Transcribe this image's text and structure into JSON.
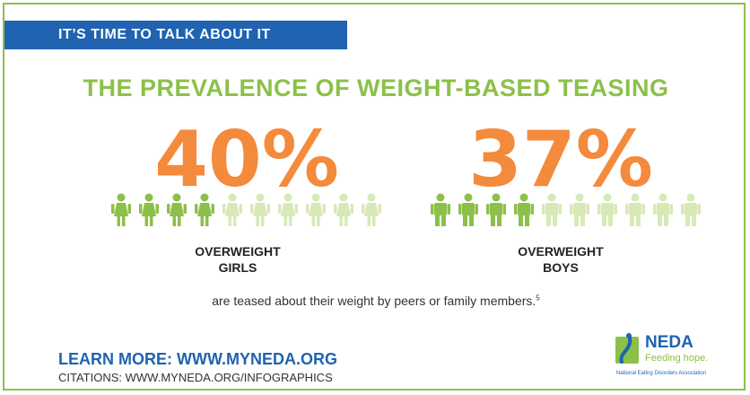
{
  "banner": {
    "text": "IT’S TIME TO TALK ABOUT IT"
  },
  "headline": "THE PREVALENCE OF WEIGHT-BASED TEASING",
  "girls": {
    "percent": "40%",
    "label_line1": "OVERWEIGHT",
    "label_line2": "GIRLS",
    "total_figures": 10,
    "highlighted": 4
  },
  "boys": {
    "percent": "37%",
    "label_line1": "OVERWEIGHT",
    "label_line2": "BOYS",
    "total_figures": 10,
    "highlighted": 4
  },
  "footnote": {
    "text": "are teased about their weight by peers or family members.",
    "ref": "5"
  },
  "footer": {
    "learn_more": "LEARN MORE: WWW.MYNEDA.ORG",
    "citations": "CITATIONS: WWW.MYNEDA.ORG/INFOGRAPHICS"
  },
  "logo": {
    "name": "NEDA",
    "tagline": "Feeding hope.",
    "org": "National Eating Disorders Association"
  },
  "colors": {
    "green": "#8cc04a",
    "light_green": "#d8e9b8",
    "orange": "#f48a3b",
    "blue": "#1f63b1"
  }
}
